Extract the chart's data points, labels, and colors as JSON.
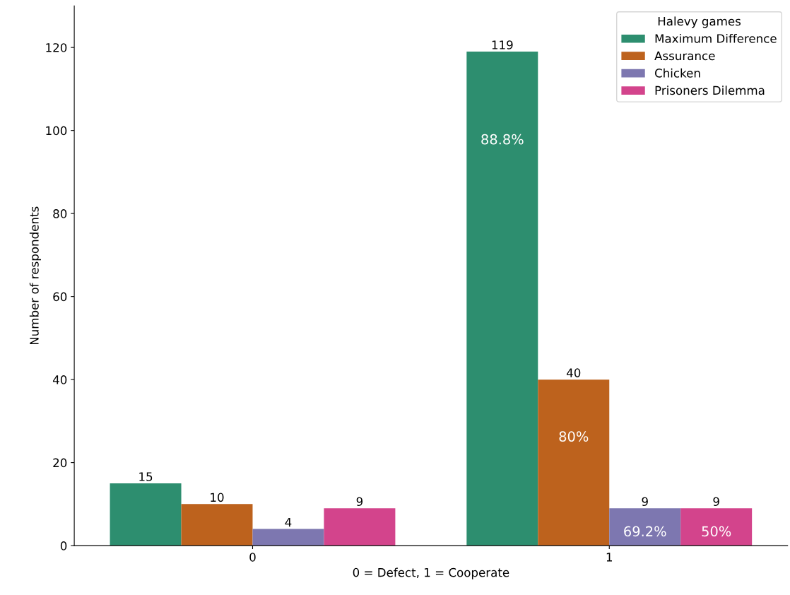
{
  "chart_data": {
    "type": "bar",
    "xlabel": "0 = Defect, 1 = Cooperate",
    "ylabel": "Number of respondents",
    "legend_title": "Halevy games",
    "categories": [
      "0",
      "1"
    ],
    "series": [
      {
        "name": "Maximum Difference",
        "color": "#2d8e6f",
        "values": [
          15,
          119
        ]
      },
      {
        "name": "Assurance",
        "color": "#bd621d",
        "values": [
          10,
          40
        ]
      },
      {
        "name": "Chicken",
        "color": "#7d77b0",
        "values": [
          4,
          9
        ]
      },
      {
        "name": "Prisoners Dilemma",
        "color": "#d3448c",
        "values": [
          9,
          9
        ]
      }
    ],
    "data_labels": true,
    "ylim": [
      0,
      130
    ],
    "yticks": [
      0,
      20,
      40,
      60,
      80,
      100,
      120
    ],
    "grid": false,
    "legend": "top right",
    "annotations": [
      "88.8%",
      "80%",
      "69.2%",
      "50%"
    ]
  }
}
